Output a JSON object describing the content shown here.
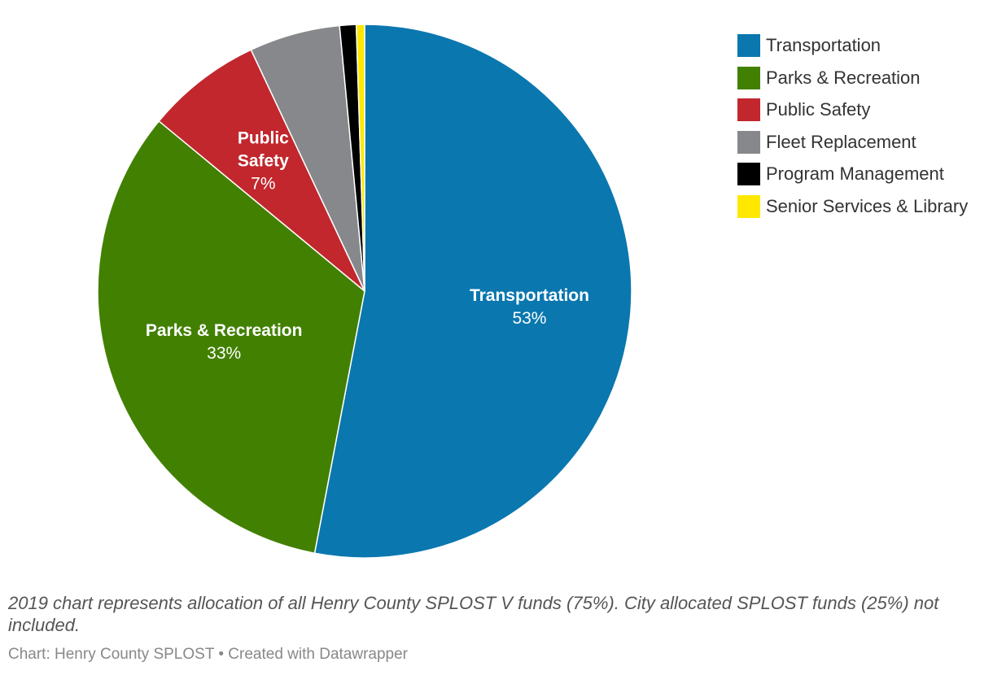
{
  "chart_data": {
    "type": "pie",
    "categories": [
      "Transportation",
      "Parks & Recreation",
      "Public Safety",
      "Fleet Replacement",
      "Program Management",
      "Senior Services & Library"
    ],
    "values": [
      53.0,
      33.0,
      7.0,
      5.5,
      1.0,
      0.5
    ],
    "unit": "%",
    "colors": [
      "#0a77af",
      "#428001",
      "#c1272d",
      "#87888b",
      "#000000",
      "#ffe800"
    ],
    "labels": [
      {
        "name_lines": [
          "Transportation"
        ],
        "percent": "53%"
      },
      {
        "name_lines": [
          "Parks & Recreation"
        ],
        "percent": "33%"
      },
      {
        "name_lines": [
          "Public",
          "Safety"
        ],
        "percent": "7%"
      }
    ],
    "legend_position": "top-right"
  },
  "note": "2019 chart represents allocation of all Henry County SPLOST V funds (75%). City allocated SPLOST funds (25%) not included.",
  "source": "Chart: Henry County SPLOST • Created with Datawrapper"
}
